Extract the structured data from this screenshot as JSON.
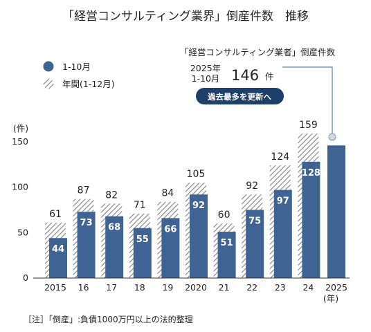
{
  "title": "「経営コンサルティング業界」倒産件数　推移",
  "legend": {
    "items": [
      {
        "label": "1-10月",
        "kind": "solid"
      },
      {
        "label": "年間(1-12月)",
        "kind": "hatched"
      }
    ]
  },
  "callout": {
    "heading": "「経営コンサルティング業者」倒産件数",
    "year_label": "2025年",
    "period_label": "1-10月",
    "value": "146",
    "unit": "件",
    "badge": "過去最多を更新へ"
  },
  "note": "［注］「倒産」:負債1000万円以上の法的整理",
  "colors": {
    "bar": "#3f6494",
    "hatch_fill": "#ffffff",
    "hatch_line": "#8a8a8a",
    "badge": "#1f3f6b",
    "axis": "#333333",
    "callout_line": "#3f6494",
    "callout_dot": "#cfd7e2"
  },
  "chart_data": {
    "type": "bar",
    "categories": [
      "2015",
      "16",
      "17",
      "18",
      "19",
      "2020",
      "21",
      "22",
      "23",
      "24",
      "2025"
    ],
    "series": [
      {
        "name": "1-10月",
        "values": [
          44,
          73,
          68,
          55,
          66,
          92,
          51,
          75,
          97,
          128,
          146
        ]
      },
      {
        "name": "年間(1-12月)",
        "values": [
          61,
          87,
          82,
          71,
          84,
          105,
          60,
          92,
          124,
          159,
          null
        ]
      }
    ],
    "ylabel": "(件)",
    "xlabel": "(年)",
    "ylim": [
      0,
      150
    ],
    "yticks": [
      0,
      50,
      100,
      150
    ],
    "inner_value_labels_shown_for": [
      true,
      true,
      true,
      true,
      true,
      true,
      true,
      true,
      true,
      true,
      false
    ],
    "grid": false,
    "legend_position": "top-left"
  }
}
